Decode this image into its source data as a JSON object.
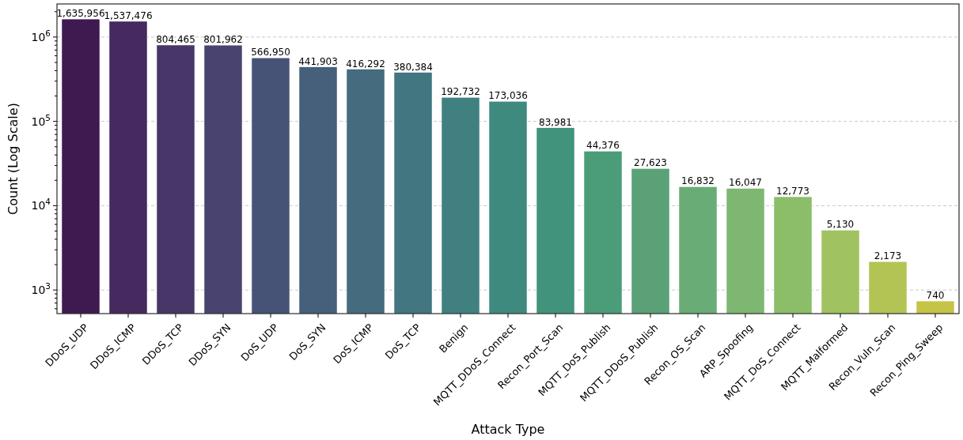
{
  "chart_data": {
    "type": "bar",
    "xlabel": "Attack Type",
    "ylabel": "Count (Log Scale)",
    "categories": [
      "DDoS_UDP",
      "DDoS_ICMP",
      "DDoS_TCP",
      "DDoS_SYN",
      "DoS_UDP",
      "DoS_SYN",
      "DoS_ICMP",
      "DoS_TCP",
      "Benign",
      "MQTT_DDoS_Connect",
      "Recon_Port_Scan",
      "MQTT_DoS_Publish",
      "MQTT_DDoS_Publish",
      "Recon_OS_Scan",
      "ARP_Spoofing",
      "MQTT_DoS_Connect",
      "MQTT_Malformed",
      "Recon_Vuln_Scan",
      "Recon_Ping_Sweep"
    ],
    "values": [
      1635956,
      1537476,
      804465,
      801962,
      566950,
      441903,
      416292,
      380384,
      192732,
      173036,
      83981,
      44376,
      27623,
      16832,
      16047,
      12773,
      5130,
      2173,
      740
    ],
    "colors": [
      "#3e1a51",
      "#45295f",
      "#473768",
      "#48446f",
      "#465376",
      "#465f7a",
      "#446b7e",
      "#427680",
      "#408081",
      "#3f8a7f",
      "#41937b",
      "#4a9d78",
      "#5aa178",
      "#6aac76",
      "#7db772",
      "#8cbe6a",
      "#a0c260",
      "#b4c454",
      "#c6c446"
    ],
    "value_labels": [
      "1,635,956",
      "1,537,476",
      "804,465",
      "801,962",
      "566,950",
      "441,903",
      "416,292",
      "380,384",
      "192,732",
      "173,036",
      "83,981",
      "44,376",
      "27,623",
      "16,832",
      "16,047",
      "12,773",
      "5,130",
      "2,173",
      "740"
    ],
    "log": "y",
    "grid": "y",
    "line_style": "dashed",
    "ylim": [
      525,
      2470000
    ],
    "yticks": [
      {
        "value": 600,
        "label": null
      },
      {
        "value": 700,
        "label": null
      },
      {
        "value": 800,
        "label": null
      },
      {
        "value": 900,
        "label": null
      },
      {
        "value": 1000,
        "label": "10$^{3}$"
      },
      {
        "value": 2000,
        "label": null
      },
      {
        "value": 3000,
        "label": null
      },
      {
        "value": 4000,
        "label": null
      },
      {
        "value": 5000,
        "label": null
      },
      {
        "value": 6000,
        "label": null
      },
      {
        "value": 7000,
        "label": null
      },
      {
        "value": 8000,
        "label": null
      },
      {
        "value": 9000,
        "label": null
      },
      {
        "value": 10000,
        "label": "10$^{4}$"
      },
      {
        "value": 20000,
        "label": null
      },
      {
        "value": 30000,
        "label": null
      },
      {
        "value": 40000,
        "label": null
      },
      {
        "value": 50000,
        "label": null
      },
      {
        "value": 60000,
        "label": null
      },
      {
        "value": 70000,
        "label": null
      },
      {
        "value": 80000,
        "label": null
      },
      {
        "value": 90000,
        "label": null
      },
      {
        "value": 100000,
        "label": "10$^{5}$"
      },
      {
        "value": 200000,
        "label": null
      },
      {
        "value": 300000,
        "label": null
      },
      {
        "value": 400000,
        "label": null
      },
      {
        "value": 500000,
        "label": null
      },
      {
        "value": 600000,
        "label": null
      },
      {
        "value": 700000,
        "label": null
      },
      {
        "value": 800000,
        "label": null
      },
      {
        "value": 900000,
        "label": null
      },
      {
        "value": 1000000,
        "label": "10$^{6}$"
      },
      {
        "value": 2000000,
        "label": null
      }
    ]
  }
}
